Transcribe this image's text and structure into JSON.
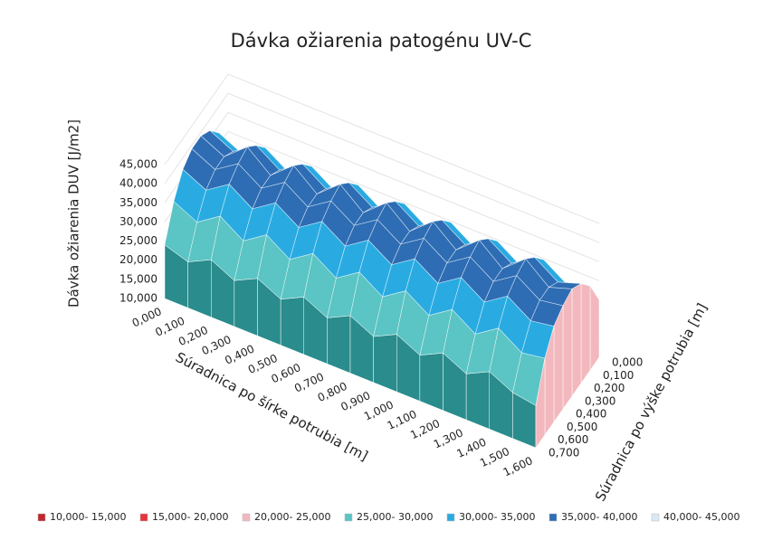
{
  "chart_data": {
    "type": "surface",
    "title": "Dávka ožiarenia patogénu UV-C",
    "z_label": "Dávka ožiarenia DUV [J/m2]",
    "x_label": "Súradnica po šírke potrubia [m]",
    "y_label": "Súradnica po výške potrubia [m]",
    "x": [
      "0,000",
      "0,100",
      "0,200",
      "0,300",
      "0,400",
      "0,500",
      "0,600",
      "0,700",
      "0,800",
      "0,900",
      "1,000",
      "1,100",
      "1,200",
      "1,300",
      "1,400",
      "1,500",
      "1,600"
    ],
    "y": [
      "0,000",
      "0,100",
      "0,200",
      "0,300",
      "0,400",
      "0,500",
      "0,600",
      "0,700"
    ],
    "zlim": [
      10000,
      45000
    ],
    "zticks": [
      {
        "value": 10000,
        "label": "10,000"
      },
      {
        "value": 15000,
        "label": "15,000"
      },
      {
        "value": 20000,
        "label": "20,000"
      },
      {
        "value": 25000,
        "label": "25,000"
      },
      {
        "value": 30000,
        "label": "30,000"
      },
      {
        "value": 35000,
        "label": "35,000"
      },
      {
        "value": 40000,
        "label": "40,000"
      },
      {
        "value": 45000,
        "label": "45,000"
      }
    ],
    "legend": [
      {
        "label": "10,000- 15,000",
        "color": "#c0262d"
      },
      {
        "label": "15,000- 20,000",
        "color": "#e8333a"
      },
      {
        "label": "20,000- 25,000",
        "color": "#f2b8bd"
      },
      {
        "label": "25,000- 30,000",
        "color": "#5bc4c4"
      },
      {
        "label": "30,000- 35,000",
        "color": "#29abe2"
      },
      {
        "label": "35,000- 40,000",
        "color": "#2e6db4"
      },
      {
        "label": "40,000- 45,000",
        "color": "#d9e8f5"
      }
    ],
    "values": [
      [
        26000,
        24000,
        27000,
        24000,
        27000,
        24000,
        27000,
        24000,
        27000,
        24000,
        27000,
        24000,
        27000,
        24000,
        27000,
        24000,
        25000
      ],
      [
        33000,
        30000,
        34000,
        30000,
        34000,
        30000,
        34000,
        30000,
        34000,
        30000,
        34000,
        30000,
        34000,
        30000,
        34000,
        30000,
        32000
      ],
      [
        37000,
        34000,
        38000,
        34000,
        38000,
        34000,
        38000,
        34000,
        38000,
        34000,
        38000,
        34000,
        38000,
        34000,
        38000,
        34000,
        36000
      ],
      [
        39000,
        36000,
        41000,
        36000,
        41000,
        36000,
        41000,
        36000,
        41000,
        36000,
        41000,
        36000,
        41000,
        36000,
        41000,
        36000,
        38000
      ],
      [
        39000,
        36000,
        40000,
        36000,
        40000,
        36000,
        40000,
        36000,
        40000,
        36000,
        40000,
        36000,
        40000,
        36000,
        40000,
        36000,
        37000
      ],
      [
        37000,
        34000,
        38000,
        34000,
        38000,
        34000,
        38000,
        34000,
        38000,
        34000,
        38000,
        34000,
        38000,
        34000,
        38000,
        34000,
        35000
      ],
      [
        32000,
        29000,
        33000,
        29000,
        33000,
        29000,
        33000,
        29000,
        33000,
        29000,
        33000,
        29000,
        33000,
        29000,
        33000,
        29000,
        30000
      ],
      [
        24000,
        22000,
        25000,
        22000,
        25000,
        22000,
        25000,
        22000,
        25000,
        22000,
        25000,
        22000,
        25000,
        22000,
        25000,
        22000,
        21000
      ]
    ]
  }
}
